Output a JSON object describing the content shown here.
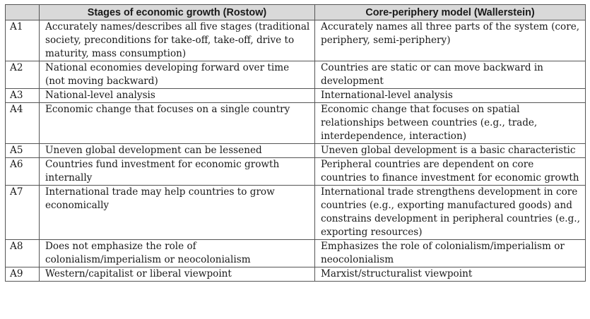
{
  "table": {
    "headers": {
      "id": "",
      "rostow": "Stages of economic growth (Rostow)",
      "wallerstein": "Core-periphery model (Wallerstein)"
    },
    "rows": [
      {
        "id": "A1",
        "rostow": "Accurately names/describes all five stages (traditional society, preconditions for take-off, take-off, drive to maturity, mass consumption)",
        "wallerstein": "Accurately names all three parts of the system (core, periphery, semi-periphery)"
      },
      {
        "id": "A2",
        "rostow": "National economies developing forward over time (not moving backward)",
        "wallerstein": "Countries are static or can move backward in development"
      },
      {
        "id": "A3",
        "rostow": "National-level analysis",
        "wallerstein": "International-level analysis"
      },
      {
        "id": "A4",
        "rostow": "Economic change that focuses on a single country",
        "wallerstein": "Economic change that focuses on spatial relationships between countries (e.g., trade, interdependence, interaction)"
      },
      {
        "id": "A5",
        "rostow": "Uneven global development can be lessened",
        "wallerstein": "Uneven global development is a basic characteristic"
      },
      {
        "id": "A6",
        "rostow": "Countries fund investment for economic growth internally",
        "wallerstein": "Peripheral countries are dependent on core countries to finance investment for economic growth"
      },
      {
        "id": "A7",
        "rostow": "International trade may help countries to grow economically",
        "wallerstein": "International trade strengthens development in core countries (e.g., exporting manufactured goods) and constrains development in peripheral countries (e.g., exporting resources)"
      },
      {
        "id": "A8",
        "rostow": "Does not emphasize the role of colonialism/imperialism or neocolonialism",
        "wallerstein": "Emphasizes the role of colonialism/imperialism or neocolonialism"
      },
      {
        "id": "A9",
        "rostow": "Western/capitalist or liberal viewpoint",
        "wallerstein": "Marxist/structuralist viewpoint"
      }
    ]
  }
}
